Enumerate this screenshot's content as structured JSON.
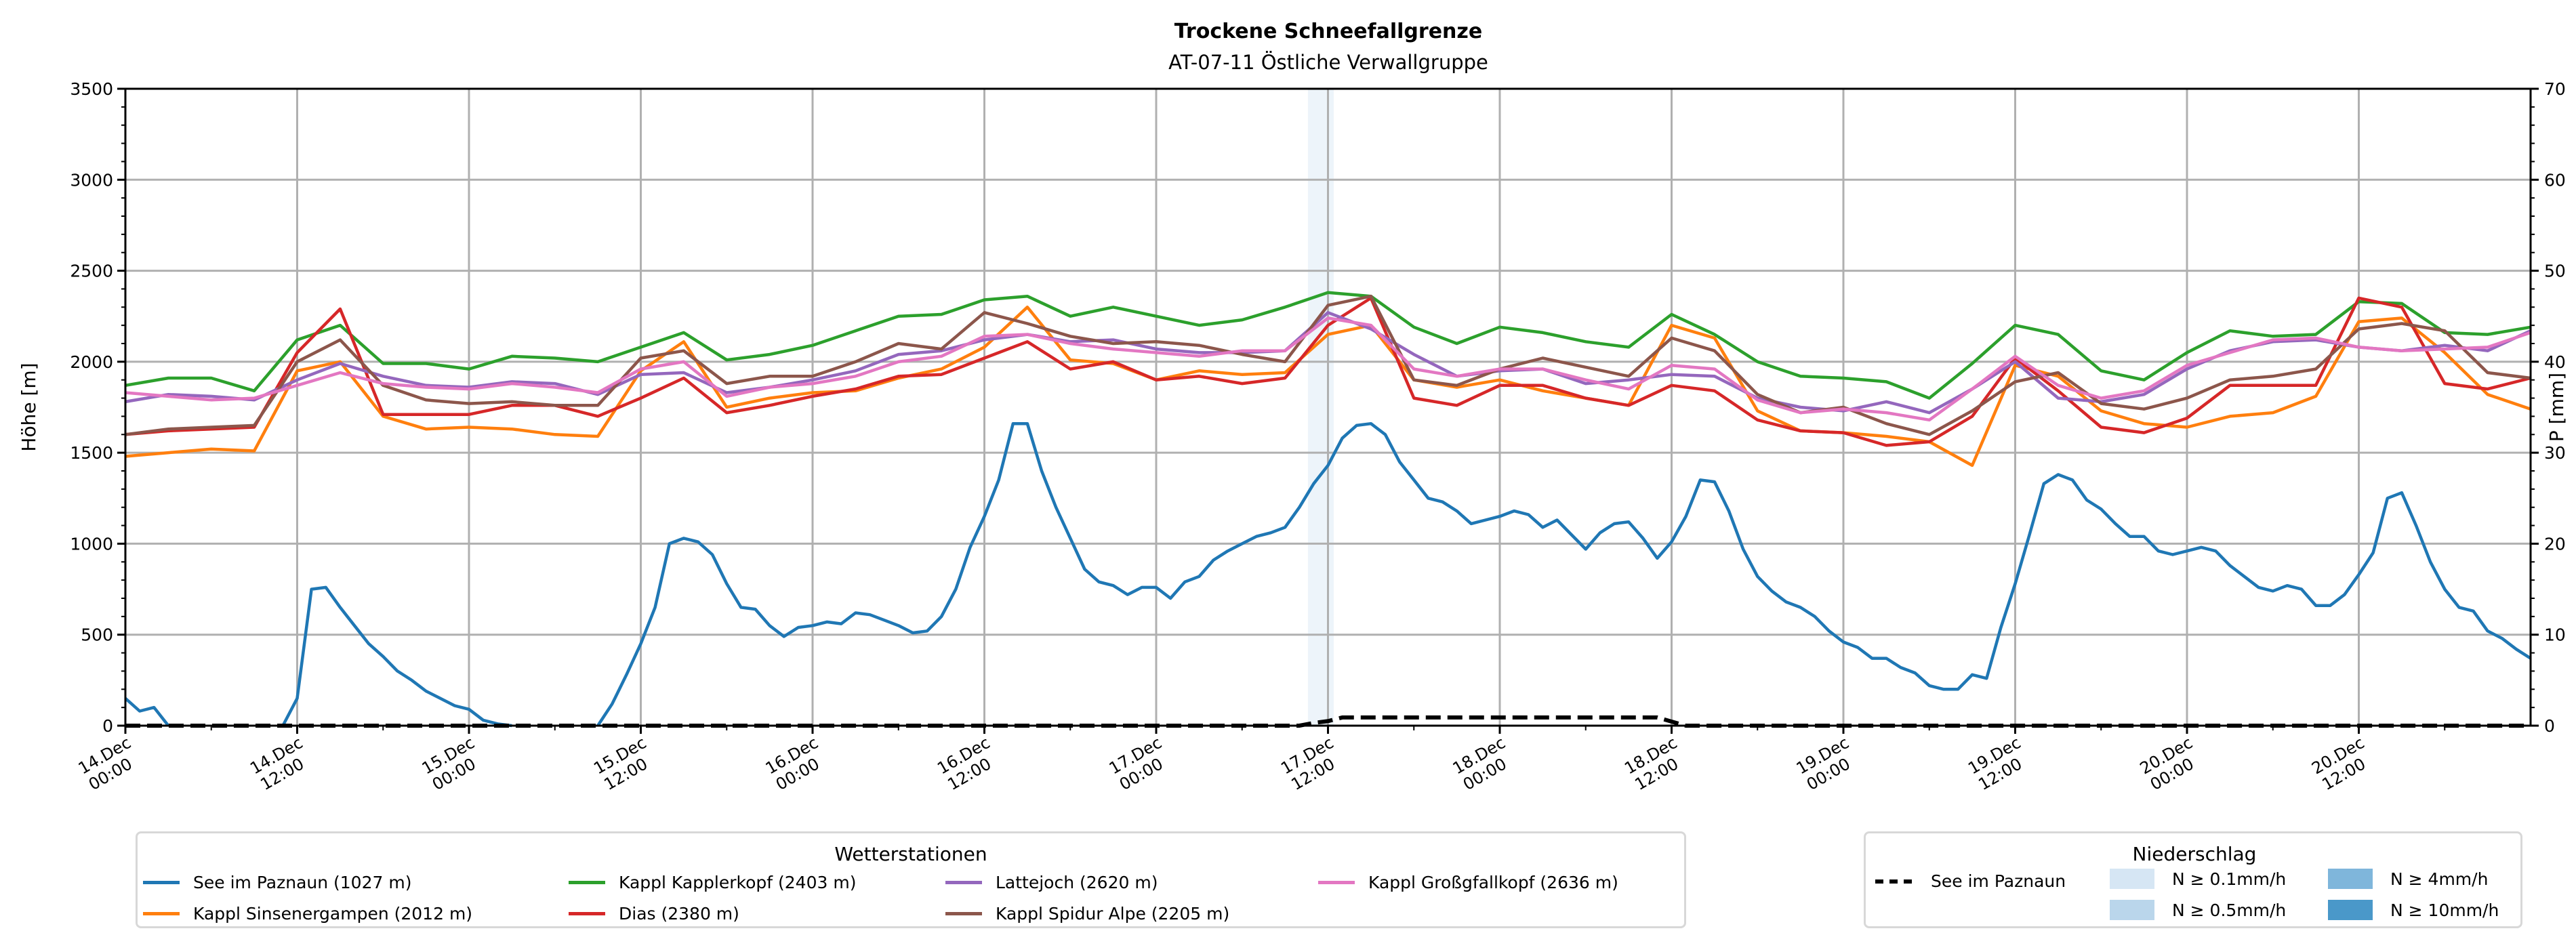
{
  "chart_data": {
    "type": "line",
    "title": "Trockene Schneefallgrenze",
    "subtitle": "AT-07-11 Östliche Verwallgruppe",
    "ylabel": "Höhe [m]",
    "ylabel_right": "P [mm]",
    "ylim": [
      0,
      3500
    ],
    "ylim_right": [
      0,
      70
    ],
    "yticks": [
      0,
      500,
      1000,
      1500,
      2000,
      2500,
      3000,
      3500
    ],
    "yticks_right": [
      0,
      10,
      20,
      30,
      40,
      50,
      60,
      70
    ],
    "x_unit": "hours since 14.Dec 00:00",
    "xlim": [
      0,
      168
    ],
    "xticks": [
      {
        "hour": 0,
        "line1": "14.Dec",
        "line2": "00:00"
      },
      {
        "hour": 12,
        "line1": "14.Dec",
        "line2": "12:00"
      },
      {
        "hour": 24,
        "line1": "15.Dec",
        "line2": "00:00"
      },
      {
        "hour": 36,
        "line1": "15.Dec",
        "line2": "12:00"
      },
      {
        "hour": 48,
        "line1": "16.Dec",
        "line2": "00:00"
      },
      {
        "hour": 60,
        "line1": "16.Dec",
        "line2": "12:00"
      },
      {
        "hour": 72,
        "line1": "17.Dec",
        "line2": "00:00"
      },
      {
        "hour": 84,
        "line1": "17.Dec",
        "line2": "12:00"
      },
      {
        "hour": 96,
        "line1": "18.Dec",
        "line2": "00:00"
      },
      {
        "hour": 108,
        "line1": "18.Dec",
        "line2": "12:00"
      },
      {
        "hour": 120,
        "line1": "19.Dec",
        "line2": "00:00"
      },
      {
        "hour": 132,
        "line1": "19.Dec",
        "line2": "12:00"
      },
      {
        "hour": 144,
        "line1": "20.Dec",
        "line2": "00:00"
      },
      {
        "hour": 156,
        "line1": "20.Dec",
        "line2": "12:00"
      }
    ],
    "grid": true,
    "series": [
      {
        "name": "See im Paznaun (1027 m)",
        "color": "#1f77b4",
        "step_hours": 1,
        "values": [
          150,
          80,
          100,
          0,
          null,
          null,
          null,
          null,
          null,
          null,
          null,
          0,
          150,
          750,
          760,
          650,
          550,
          450,
          380,
          300,
          250,
          190,
          150,
          110,
          90,
          30,
          10,
          0,
          null,
          null,
          null,
          null,
          null,
          0,
          120,
          280,
          450,
          650,
          1000,
          1030,
          1010,
          940,
          780,
          650,
          640,
          550,
          490,
          540,
          550,
          570,
          560,
          620,
          610,
          580,
          550,
          510,
          520,
          600,
          750,
          980,
          1150,
          1350,
          1660,
          1660,
          1400,
          1200,
          1030,
          860,
          790,
          770,
          720,
          760,
          760,
          700,
          790,
          820,
          910,
          960,
          1000,
          1040,
          1060,
          1090,
          1200,
          1330,
          1430,
          1580,
          1650,
          1660,
          1600,
          1450,
          1350,
          1250,
          1230,
          1180,
          1110,
          1130,
          1150,
          1180,
          1160,
          1090,
          1130,
          1050,
          970,
          1060,
          1110,
          1120,
          1030,
          920,
          1010,
          1150,
          1350,
          1340,
          1180,
          970,
          820,
          740,
          680,
          650,
          600,
          520,
          460,
          430,
          370,
          370,
          320,
          290,
          220,
          200,
          200,
          280,
          260,
          540,
          780,
          1050,
          1330,
          1380,
          1350,
          1240,
          1190,
          1110,
          1040,
          1040,
          960,
          940,
          960,
          980,
          960,
          880,
          820,
          760,
          740,
          770,
          750,
          660,
          660,
          720,
          830,
          950,
          1250,
          1280,
          1100,
          900,
          750,
          650,
          630,
          520,
          480,
          420,
          370
        ]
      },
      {
        "name": "Kappl Sinsenergampen (2012 m)",
        "color": "#ff7f0e",
        "step_hours": 3,
        "values": [
          1480,
          1500,
          1520,
          1510,
          1950,
          2000,
          1700,
          1630,
          1640,
          1630,
          1600,
          1590,
          1950,
          2110,
          1750,
          1800,
          1830,
          1840,
          1910,
          1960,
          2080,
          2300,
          2010,
          1990,
          1900,
          1950,
          1930,
          1940,
          2150,
          2200,
          1900,
          1860,
          1900,
          1840,
          1800,
          1760,
          2200,
          2130,
          1730,
          1620,
          1610,
          1590,
          1560,
          1430,
          1980,
          1920,
          1730,
          1660,
          1640,
          1700,
          1720,
          1810,
          2220,
          2240,
          2050,
          1820,
          1740
        ]
      },
      {
        "name": "Kappl Kapplerkopf (2403 m)",
        "color": "#2ca02c",
        "step_hours": 3,
        "values": [
          1870,
          1910,
          1910,
          1840,
          2120,
          2200,
          1990,
          1990,
          1960,
          2030,
          2020,
          2000,
          2080,
          2160,
          2010,
          2040,
          2090,
          2170,
          2250,
          2260,
          2340,
          2360,
          2250,
          2300,
          2250,
          2200,
          2230,
          2300,
          2380,
          2360,
          2190,
          2100,
          2190,
          2160,
          2110,
          2080,
          2260,
          2150,
          2000,
          1920,
          1910,
          1890,
          1800,
          1990,
          2200,
          2150,
          1950,
          1900,
          2050,
          2170,
          2140,
          2150,
          2330,
          2320,
          2160,
          2150,
          2190
        ]
      },
      {
        "name": "Dias (2380 m)",
        "color": "#d62728",
        "step_hours": 3,
        "values": [
          1600,
          1620,
          1630,
          1640,
          2050,
          2290,
          1710,
          1710,
          1710,
          1760,
          1760,
          1700,
          1800,
          1910,
          1720,
          1760,
          1810,
          1850,
          1920,
          1930,
          2020,
          2110,
          1960,
          2000,
          1900,
          1920,
          1880,
          1910,
          2200,
          2350,
          1800,
          1760,
          1870,
          1870,
          1800,
          1760,
          1870,
          1840,
          1680,
          1620,
          1610,
          1540,
          1560,
          1700,
          2020,
          1840,
          1640,
          1610,
          1690,
          1870,
          1870,
          1870,
          2350,
          2300,
          1880,
          1850,
          1910
        ]
      },
      {
        "name": "Lattejoch (2620 m)",
        "color": "#9467bd",
        "step_hours": 3,
        "values": [
          1780,
          1820,
          1810,
          1790,
          1900,
          1990,
          1920,
          1870,
          1860,
          1890,
          1880,
          1820,
          1930,
          1940,
          1830,
          1860,
          1900,
          1950,
          2040,
          2060,
          2120,
          2150,
          2110,
          2120,
          2070,
          2050,
          2050,
          2060,
          2270,
          2180,
          2040,
          1920,
          1950,
          1960,
          1880,
          1900,
          1930,
          1920,
          1800,
          1750,
          1730,
          1780,
          1720,
          1850,
          2000,
          1800,
          1780,
          1820,
          1960,
          2060,
          2110,
          2120,
          2080,
          2060,
          2090,
          2060,
          2170
        ]
      },
      {
        "name": "Kappl Spidur Alpe (2205 m)",
        "color": "#8c564b",
        "step_hours": 3,
        "values": [
          1600,
          1630,
          1640,
          1650,
          2000,
          2120,
          1870,
          1790,
          1770,
          1780,
          1760,
          1760,
          2020,
          2060,
          1880,
          1920,
          1920,
          2000,
          2100,
          2070,
          2270,
          2210,
          2140,
          2100,
          2110,
          2090,
          2040,
          2000,
          2310,
          2360,
          1900,
          1870,
          1960,
          2020,
          1970,
          1920,
          2130,
          2060,
          1820,
          1720,
          1750,
          1660,
          1600,
          1730,
          1890,
          1940,
          1770,
          1740,
          1800,
          1900,
          1920,
          1960,
          2180,
          2210,
          2170,
          1940,
          1910
        ]
      },
      {
        "name": "Kappl Großgfallkopf (2636 m)",
        "color": "#e377c2",
        "step_hours": 3,
        "values": [
          1830,
          1810,
          1790,
          1800,
          1870,
          1940,
          1880,
          1860,
          1850,
          1880,
          1860,
          1830,
          1960,
          2000,
          1810,
          1860,
          1880,
          1920,
          2000,
          2030,
          2140,
          2150,
          2100,
          2070,
          2050,
          2030,
          2060,
          2060,
          2240,
          2200,
          1960,
          1920,
          1960,
          1960,
          1900,
          1850,
          1980,
          1960,
          1790,
          1720,
          1740,
          1720,
          1680,
          1850,
          2030,
          1870,
          1800,
          1840,
          1980,
          2050,
          2120,
          2130,
          2080,
          2060,
          2070,
          2080,
          2160
        ]
      }
    ],
    "precipitation": {
      "name": "See im Paznaun",
      "axis": "right",
      "style": "dashed",
      "color": "#000000",
      "x": [
        0,
        82,
        83,
        84,
        85,
        107,
        109,
        168
      ],
      "y": [
        0,
        0,
        0.3,
        0.5,
        0.9,
        0.9,
        0,
        0
      ]
    },
    "precip_intensity_spans": [
      {
        "from_hour": 82.6,
        "to_hour": 84.4,
        "class": "N ≥ 0.1mm/h"
      }
    ],
    "legend_stations": {
      "title": "Wetterstationen",
      "placement": "bottom-left"
    },
    "legend_precip": {
      "title": "Niederschlag",
      "placement": "bottom-right",
      "line_label": "See im Paznaun",
      "classes": [
        {
          "label": "N ≥ 0.1mm/h",
          "color": "#d6e6f4"
        },
        {
          "label": "N ≥ 0.5mm/h",
          "color": "#bad6eb"
        },
        {
          "label": "N ≥ 4mm/h",
          "color": "#7fb6db"
        },
        {
          "label": "N ≥ 10mm/h",
          "color": "#4a98c9"
        }
      ]
    }
  }
}
